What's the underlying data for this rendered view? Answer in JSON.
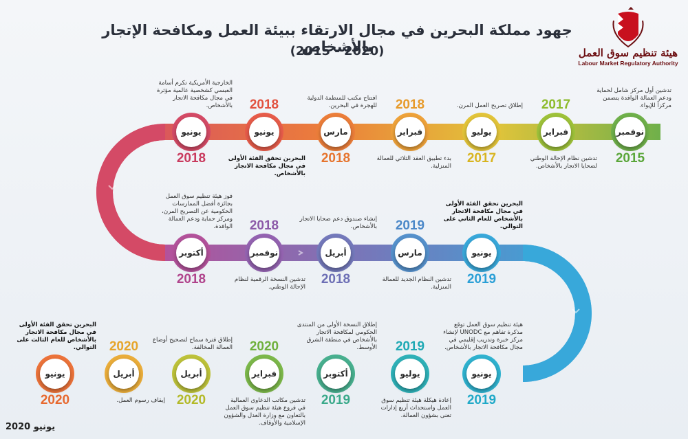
{
  "title": "جهود مملكة البحرين في مجال الارتقاء ببيئة العمل ومكافحة الإتجار بالأشخاص",
  "subtitle": "(2015 - 2020)",
  "logo": {
    "name_ar": "هيئة تنظيم سوق العمل",
    "name_en": "Labour Market Regulatory Authority"
  },
  "footer": "يونيو 2020",
  "milestones": [
    {
      "month": "نوفمبر",
      "year": "2015",
      "year_color": "#5aa63a",
      "ring": "#6fb04a",
      "desc": "تدشين أول مركز شامل لحماية ودعم العمالة الوافدة يتضمن مركزاً للإيواء.",
      "bold": false
    },
    {
      "month": "فبراير",
      "year": "2017",
      "year_color": "#8dbb2c",
      "ring": "#9ec23a",
      "desc": "تدشين نظام الإحالة الوطني لضحايا الاتجار بالأشخاص.",
      "bold": false
    },
    {
      "month": "يوليو",
      "year": "2017",
      "year_color": "#d8b41f",
      "ring": "#e2c43a",
      "desc": "إطلاق تصريح العمل المرن.",
      "bold": false
    },
    {
      "month": "فبراير",
      "year": "2018",
      "year_color": "#e79a2a",
      "ring": "#eea23a",
      "desc": "بدء تطبيق العقد الثلاثي للعمالة المنزلية.",
      "bold": false
    },
    {
      "month": "مارس",
      "year": "2018",
      "year_color": "#e6742e",
      "ring": "#ec7e3a",
      "desc": "افتتاح مكتب للمنظمة الدولية للهجرة في البحرين.",
      "bold": false
    },
    {
      "month": "يونيو",
      "year": "2018",
      "year_color": "#e2513f",
      "ring": "#e75c4a",
      "desc": "البحرين تحقق الفئة الأولى في مجال مكافحة الاتجار بالأشخاص.",
      "bold": true
    },
    {
      "month": "يونيو",
      "year": "2018",
      "year_color": "#c93a5e",
      "ring": "#d44a66",
      "desc": "الخارجية الأمريكية تكرم أسامة العبسي كشخصية عالمية مؤثرة في مجال مكافحة الاتجار بالأشخاص.",
      "bold": false
    },
    {
      "month": "أكتوبر",
      "year": "2018",
      "year_color": "#b0448c",
      "ring": "#b3529b",
      "desc": "فوز هيئة تنظيم سوق العمل بجائزة أفضل الممارسات الحكومية عن التصريح المرن، ومركز حماية ودعم العمالة الوافدة.",
      "bold": false
    },
    {
      "month": "نوفمبر",
      "year": "2018",
      "year_color": "#8c5aa8",
      "ring": "#9463b1",
      "desc": "تدشين النسخة الرقمية لنظام الإحالة الوطني.",
      "bold": false
    },
    {
      "month": "أبريل",
      "year": "2018",
      "year_color": "#6d6fb5",
      "ring": "#7479bb",
      "desc": "إنشاء صندوق دعم ضحايا الاتجار بالأشخاص.",
      "bold": false
    },
    {
      "month": "مارس",
      "year": "2019",
      "year_color": "#4b88c8",
      "ring": "#5591cc",
      "desc": "تدشين النظام الجديد للعمالة المنزلية.",
      "bold": false
    },
    {
      "month": "يونيو",
      "year": "2019",
      "year_color": "#2a9fd6",
      "ring": "#38a8da",
      "desc": "البحرين تحقق الفئة الأولى في مجال مكافحة الاتجار بالأشخاص للعام الثاني على التوالي.",
      "bold": true
    },
    {
      "month": "يونيو",
      "year": "2019",
      "year_color": "#20a9c8",
      "ring": "#2fb2cf",
      "desc": "هيئة تنظيم سوق العمل توقع مذكرة تفاهم مع UNODC لإنشاء مركز خبرة وتدريب إقليمي في مجال مكافحة الاتجار بالأشخاص.",
      "bold": false
    },
    {
      "month": "يوليو",
      "year": "2019",
      "year_color": "#1ea9b4",
      "ring": "#2eb1b8",
      "desc": "إعادة هيكلة هيئة تنظيم سوق العمل واستحداث أربع إدارات تعنى بشؤون العمالة.",
      "bold": false
    },
    {
      "month": "أكتوبر",
      "year": "2019",
      "year_color": "#3aa98a",
      "ring": "#48b08f",
      "desc": "إطلاق النسخة الأولى من المنتدى الحكومي لمكافحة الاتجار بالأشخاص في منطقة الشرق الأوسط.",
      "bold": false
    },
    {
      "month": "فبراير",
      "year": "2020",
      "year_color": "#6fb03c",
      "ring": "#7cb84a",
      "desc": "تدشين مكاتب الدعاوى العمالية في فروع هيئة تنظيم سوق العمل بالتعاون مع وزارة العدل والشؤون الإسلامية والأوقاف.",
      "bold": false
    },
    {
      "month": "أبريل",
      "year": "2020",
      "year_color": "#b3b928",
      "ring": "#bdc23a",
      "desc": "إطلاق فترة سماح لتصحيح أوضاع العمالة المخالفة.",
      "bold": false
    },
    {
      "month": "أبريل",
      "year": "2020",
      "year_color": "#e6a52a",
      "ring": "#eaad3a",
      "desc": "إيقاف رسوم العمل.",
      "bold": false
    },
    {
      "month": "يونيو",
      "year": "2020",
      "year_color": "#e7682e",
      "ring": "#ec733a",
      "desc": "البحرين تحقق الفئة الأولى في مجال مكافحة الاتجار بالأشخاص للعام الثالث على التوالي.",
      "bold": true
    }
  ]
}
